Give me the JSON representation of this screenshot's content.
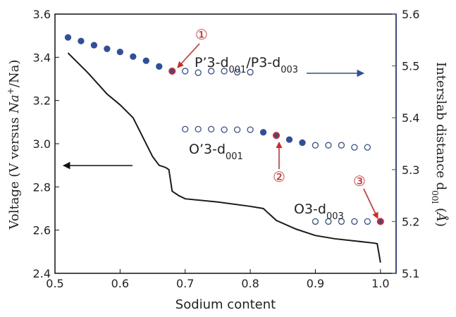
{
  "chart_data": {
    "type": "line",
    "xlabel": "Sodium content",
    "ylabel": [
      "Voltage (V versus ",
      "Na",
      "+",
      "/Na)"
    ],
    "y2label": [
      "Interslab distance d",
      "00l",
      " (",
      "Å",
      ")"
    ],
    "xlim": [
      0.5,
      1.024
    ],
    "xticks": [
      0.5,
      0.6,
      0.7,
      0.8,
      0.9,
      {
        "value": 1.0,
        "label": "1.0"
      }
    ],
    "ylim": [
      2.4,
      3.6
    ],
    "yticks": [
      2.4,
      2.6,
      2.8,
      {
        "value": 3.0,
        "label": "3.0"
      },
      3.2,
      3.4,
      3.6
    ],
    "y2lim": [
      5.1,
      5.6
    ],
    "y2ticks": [
      5.1,
      5.2,
      5.3,
      5.4,
      5.5,
      5.6
    ],
    "series": [
      {
        "type": "line",
        "color": "#1a1a1a",
        "x": [
          0.52,
          0.55,
          0.58,
          0.6,
          0.62,
          0.63,
          0.65,
          0.66,
          0.67,
          0.675,
          0.68,
          0.69,
          0.7,
          0.75,
          0.8,
          0.82,
          0.84,
          0.87,
          0.9,
          0.93,
          0.96,
          0.99,
          0.995,
          1.0
        ],
        "values": [
          3.42,
          3.33,
          3.23,
          3.18,
          3.12,
          3.06,
          2.94,
          2.9,
          2.89,
          2.88,
          2.78,
          2.76,
          2.745,
          2.73,
          2.71,
          2.7,
          2.645,
          2.605,
          2.575,
          2.56,
          2.55,
          2.54,
          2.537,
          2.45
        ]
      },
      {
        "type": "scatter",
        "axis": "y2",
        "color": "#2f4f9e",
        "filled": true,
        "x": [
          0.52,
          0.54,
          0.56,
          0.58,
          0.6,
          0.62,
          0.64,
          0.66,
          0.82,
          0.86,
          0.88
        ],
        "values": [
          5.555,
          5.548,
          5.54,
          5.533,
          5.527,
          5.518,
          5.51,
          5.499,
          5.372,
          5.358,
          5.352
        ]
      },
      {
        "type": "scatter",
        "axis": "y2",
        "color": "#2f4f9e",
        "filled": false,
        "x": [
          0.7,
          0.72,
          0.74,
          0.76,
          0.78,
          0.8,
          0.7,
          0.72,
          0.74,
          0.76,
          0.78,
          0.8,
          0.9,
          0.92,
          0.94,
          0.96,
          0.98,
          0.9,
          0.92,
          0.94,
          0.96,
          0.98
        ],
        "values": [
          5.49,
          5.487,
          5.49,
          5.49,
          5.488,
          5.488,
          5.378,
          5.378,
          5.378,
          5.377,
          5.377,
          5.377,
          5.347,
          5.347,
          5.347,
          5.343,
          5.343,
          5.2,
          5.2,
          5.2,
          5.2,
          5.2
        ]
      },
      {
        "type": "scatter",
        "axis": "y2",
        "color": "#2f4f9e",
        "edgecolor": "#e02020",
        "filled": true,
        "x": [
          0.68,
          0.84,
          1.0
        ],
        "values": [
          5.49,
          5.366,
          5.2
        ]
      }
    ],
    "annotations": [
      "①",
      "②",
      "③"
    ],
    "phase_labels": [
      [
        "P’3-d",
        "001",
        "/P3-d",
        "003"
      ],
      [
        "O’3-d",
        "001"
      ],
      [
        "O3-d",
        "003"
      ]
    ]
  }
}
